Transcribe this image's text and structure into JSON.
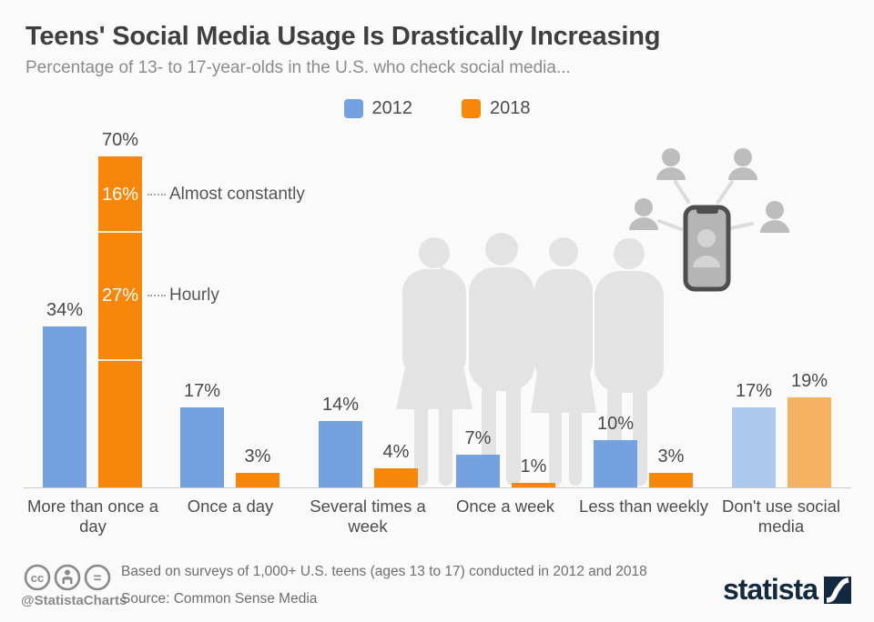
{
  "header": {
    "title": "Teens' Social Media Usage Is Drastically Increasing",
    "subtitle": "Percentage of 13- to 17-year-olds in the U.S. who check social media..."
  },
  "legend": [
    {
      "label": "2012",
      "color": "#74A1DF"
    },
    {
      "label": "2018",
      "color": "#F6870A"
    }
  ],
  "chart_data": {
    "type": "bar",
    "categories": [
      "More than once a day",
      "Once a day",
      "Several times a week",
      "Once a week",
      "Less than weekly",
      "Don't use social media"
    ],
    "series": [
      {
        "name": "2012",
        "color": "#74A1DF",
        "muted_color": "#ADCAED",
        "values": [
          34,
          17,
          14,
          7,
          10,
          17
        ]
      },
      {
        "name": "2018",
        "color": "#F6870A",
        "muted_color": "#F6B163",
        "values": [
          70,
          3,
          4,
          1,
          3,
          19
        ]
      }
    ],
    "muted_category_index": 5,
    "value_suffix": "%",
    "stacked_annotations": {
      "category": "More than once a day",
      "series": "2018",
      "segments_from_top": [
        {
          "label": "Almost constantly",
          "value": 16
        },
        {
          "label": "Hourly",
          "value": 27
        },
        {
          "label": "",
          "value": 27
        }
      ]
    },
    "title": "Teens' Social Media Usage Is Drastically Increasing",
    "xlabel": "",
    "ylabel": "",
    "ylim": [
      0,
      70
    ],
    "grid": false,
    "legend_position": "top-center"
  },
  "footer": {
    "note": "Based on surveys of 1,000+ U.S. teens (ages 13 to 17) conducted in 2012 and 2018",
    "source": "Source: Common Sense Media",
    "handle": "@StatistaCharts",
    "brand": "statista"
  },
  "colors": {
    "background": "#FAFAFA",
    "axis": "#CDCDCD",
    "silhouette": "#E3E3E3",
    "illustration": "#BDBDBD",
    "brand_navy": "#13293F"
  }
}
